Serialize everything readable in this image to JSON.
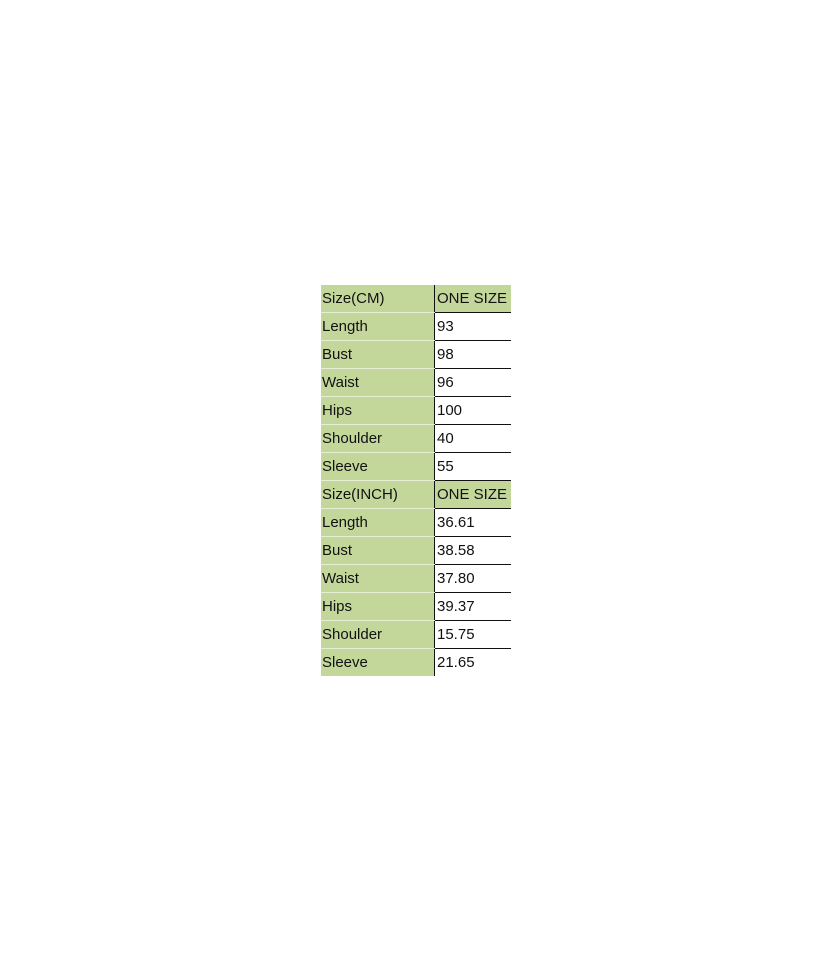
{
  "sections": [
    {
      "header": {
        "label": "Size(CM)",
        "value": "ONE SIZE"
      },
      "rows": [
        {
          "label": "Length",
          "value": "93"
        },
        {
          "label": "Bust",
          "value": "98"
        },
        {
          "label": "Waist",
          "value": "96"
        },
        {
          "label": "Hips",
          "value": "100"
        },
        {
          "label": "Shoulder",
          "value": "40"
        },
        {
          "label": "Sleeve",
          "value": "55"
        }
      ]
    },
    {
      "header": {
        "label": "Size(INCH)",
        "value": "ONE SIZE"
      },
      "rows": [
        {
          "label": "Length",
          "value": "36.61"
        },
        {
          "label": "Bust",
          "value": "38.58"
        },
        {
          "label": "Waist",
          "value": "37.80"
        },
        {
          "label": "Hips",
          "value": "39.37"
        },
        {
          "label": "Shoulder",
          "value": "15.75"
        },
        {
          "label": "Sleeve",
          "value": "21.65"
        }
      ]
    }
  ],
  "colors": {
    "header_fill": "#c4d79b",
    "grid": "#111111"
  }
}
